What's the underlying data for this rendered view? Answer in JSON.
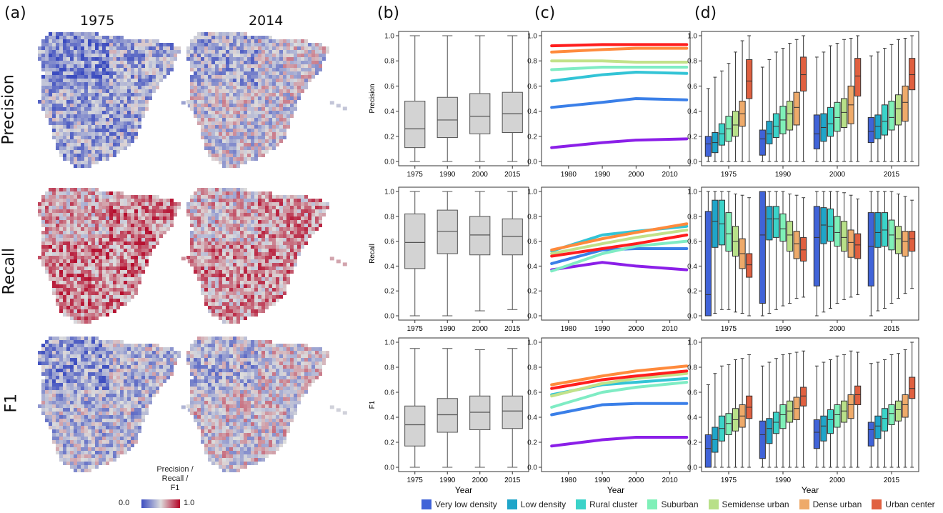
{
  "panel_labels": {
    "a": "(a)",
    "b": "(b)",
    "c": "(c)",
    "d": "(d)"
  },
  "maps": {
    "years": [
      "1975",
      "2014"
    ],
    "rows": [
      "Precision",
      "Recall",
      "F1"
    ],
    "colorbar": {
      "label": "Precision /\nRecall /\nF1",
      "min": "0.0",
      "max": "1.0",
      "low_color": "#3b4cc0",
      "mid_color": "#dddddd",
      "high_color": "#b40426"
    }
  },
  "categories": [
    "Very low density",
    "Low density",
    "Rural cluster",
    "Suburban",
    "Semidense urban",
    "Dense urban",
    "Urban center"
  ],
  "colors": {
    "box_gray": "#d3d3d3",
    "cat_box": [
      "#4063d8",
      "#1fa5c9",
      "#3bd3c9",
      "#7ff0b8",
      "#b8e089",
      "#eeaa6a",
      "#e06040"
    ],
    "line": [
      "#8b1fe8",
      "#3a7fe8",
      "#33c4d6",
      "#7fecc4",
      "#c2e28a",
      "#ff8a3c",
      "#ff1e1e"
    ]
  },
  "chart_data": [
    {
      "type": "box",
      "panel": "b",
      "metric": "Precision",
      "categories": [
        "1975",
        "1990",
        "2000",
        "2015"
      ],
      "ylabel": "Precision",
      "xlabel": "",
      "ylim": [
        0,
        1
      ],
      "yticks": [
        "0.0",
        "0.2",
        "0.4",
        "0.6",
        "0.8",
        "1.0"
      ],
      "boxes": [
        {
          "min": 0.0,
          "q1": 0.11,
          "median": 0.26,
          "q3": 0.48,
          "max": 1.0
        },
        {
          "min": 0.0,
          "q1": 0.19,
          "median": 0.33,
          "q3": 0.51,
          "max": 1.0
        },
        {
          "min": 0.0,
          "q1": 0.22,
          "median": 0.36,
          "q3": 0.54,
          "max": 1.0
        },
        {
          "min": 0.0,
          "q1": 0.23,
          "median": 0.38,
          "q3": 0.55,
          "max": 1.0
        }
      ]
    },
    {
      "type": "box",
      "panel": "b",
      "metric": "Recall",
      "categories": [
        "1975",
        "1990",
        "2000",
        "2015"
      ],
      "ylabel": "Recall",
      "xlabel": "",
      "ylim": [
        0,
        1
      ],
      "yticks": [
        "0.0",
        "0.2",
        "0.4",
        "0.6",
        "0.8",
        "1.0"
      ],
      "boxes": [
        {
          "min": 0.0,
          "q1": 0.38,
          "median": 0.59,
          "q3": 0.82,
          "max": 1.0
        },
        {
          "min": 0.0,
          "q1": 0.5,
          "median": 0.68,
          "q3": 0.85,
          "max": 1.0
        },
        {
          "min": 0.04,
          "q1": 0.49,
          "median": 0.65,
          "q3": 0.8,
          "max": 1.0
        },
        {
          "min": 0.05,
          "q1": 0.49,
          "median": 0.64,
          "q3": 0.78,
          "max": 1.0
        }
      ]
    },
    {
      "type": "box",
      "panel": "b",
      "metric": "F1",
      "categories": [
        "1975",
        "1990",
        "2000",
        "2015"
      ],
      "ylabel": "F1",
      "xlabel": "Year",
      "ylim": [
        0,
        1
      ],
      "yticks": [
        "0.0",
        "0.2",
        "0.4",
        "0.6",
        "0.8",
        "1.0"
      ],
      "boxes": [
        {
          "min": 0.0,
          "q1": 0.17,
          "median": 0.34,
          "q3": 0.49,
          "max": 0.95
        },
        {
          "min": 0.0,
          "q1": 0.28,
          "median": 0.42,
          "q3": 0.55,
          "max": 0.95
        },
        {
          "min": 0.0,
          "q1": 0.3,
          "median": 0.44,
          "q3": 0.57,
          "max": 0.94
        },
        {
          "min": 0.0,
          "q1": 0.31,
          "median": 0.45,
          "q3": 0.57,
          "max": 0.95
        }
      ]
    },
    {
      "type": "line",
      "panel": "c",
      "metric": "Precision",
      "x": [
        1975,
        1990,
        2000,
        2015
      ],
      "xlim": [
        1972,
        2016
      ],
      "ylim": [
        0,
        1
      ],
      "xticks": [
        "1980",
        "1990",
        "2000",
        "2010"
      ],
      "yticks": [
        "0.0",
        "0.2",
        "0.4",
        "0.6",
        "0.8",
        "1.0"
      ],
      "xlabel": "",
      "series": [
        {
          "name": "Very low density",
          "values": [
            0.11,
            0.15,
            0.17,
            0.18
          ]
        },
        {
          "name": "Low density",
          "values": [
            0.43,
            0.47,
            0.5,
            0.49
          ]
        },
        {
          "name": "Rural cluster",
          "values": [
            0.64,
            0.69,
            0.71,
            0.7
          ]
        },
        {
          "name": "Suburban",
          "values": [
            0.73,
            0.75,
            0.75,
            0.75
          ]
        },
        {
          "name": "Semidense urban",
          "values": [
            0.8,
            0.8,
            0.79,
            0.79
          ]
        },
        {
          "name": "Dense urban",
          "values": [
            0.87,
            0.89,
            0.9,
            0.9
          ]
        },
        {
          "name": "Urban center",
          "values": [
            0.92,
            0.93,
            0.93,
            0.93
          ]
        }
      ]
    },
    {
      "type": "line",
      "panel": "c",
      "metric": "Recall",
      "x": [
        1975,
        1990,
        2000,
        2015
      ],
      "xlim": [
        1972,
        2016
      ],
      "ylim": [
        0,
        1
      ],
      "xticks": [
        "1980",
        "1990",
        "2000",
        "2010"
      ],
      "yticks": [
        "0.0",
        "0.2",
        "0.4",
        "0.6",
        "0.8",
        "1.0"
      ],
      "xlabel": "",
      "series": [
        {
          "name": "Very low density",
          "values": [
            0.37,
            0.43,
            0.4,
            0.37
          ]
        },
        {
          "name": "Low density",
          "values": [
            0.42,
            0.53,
            0.54,
            0.54
          ]
        },
        {
          "name": "Rural cluster",
          "values": [
            0.52,
            0.65,
            0.68,
            0.72
          ]
        },
        {
          "name": "Suburban",
          "values": [
            0.36,
            0.5,
            0.56,
            0.6
          ]
        },
        {
          "name": "Semidense urban",
          "values": [
            0.5,
            0.58,
            0.63,
            0.69
          ]
        },
        {
          "name": "Dense urban",
          "values": [
            0.53,
            0.62,
            0.67,
            0.74
          ]
        },
        {
          "name": "Urban center",
          "values": [
            0.48,
            0.54,
            0.58,
            0.65
          ]
        }
      ]
    },
    {
      "type": "line",
      "panel": "c",
      "metric": "F1",
      "x": [
        1975,
        1990,
        2000,
        2015
      ],
      "xlim": [
        1972,
        2016
      ],
      "ylim": [
        0,
        1
      ],
      "xticks": [
        "1980",
        "1990",
        "2000",
        "2010"
      ],
      "yticks": [
        "0.0",
        "0.2",
        "0.4",
        "0.6",
        "0.8",
        "1.0"
      ],
      "xlabel": "Year",
      "series": [
        {
          "name": "Very low density",
          "values": [
            0.17,
            0.22,
            0.24,
            0.24
          ]
        },
        {
          "name": "Low density",
          "values": [
            0.42,
            0.5,
            0.51,
            0.51
          ]
        },
        {
          "name": "Rural cluster",
          "values": [
            0.58,
            0.66,
            0.68,
            0.71
          ]
        },
        {
          "name": "Suburban",
          "values": [
            0.48,
            0.6,
            0.64,
            0.68
          ]
        },
        {
          "name": "Semidense urban",
          "values": [
            0.57,
            0.67,
            0.71,
            0.75
          ]
        },
        {
          "name": "Dense urban",
          "values": [
            0.66,
            0.73,
            0.77,
            0.81
          ]
        },
        {
          "name": "Urban center",
          "values": [
            0.63,
            0.7,
            0.73,
            0.77
          ]
        }
      ]
    },
    {
      "type": "box",
      "panel": "d",
      "metric": "Precision",
      "groups": [
        "1975",
        "1990",
        "2000",
        "2015"
      ],
      "ylim": [
        0,
        1
      ],
      "xlabel": "",
      "yticks": [
        "0.0",
        "0.2",
        "0.4",
        "0.6",
        "0.8",
        "1.0"
      ],
      "boxes": [
        [
          [
            0,
            0.04,
            0.14,
            0.2,
            0.58
          ],
          [
            0,
            0.07,
            0.15,
            0.23,
            0.67
          ],
          [
            0,
            0.13,
            0.22,
            0.3,
            0.72
          ],
          [
            0,
            0.16,
            0.26,
            0.36,
            0.78
          ],
          [
            0,
            0.2,
            0.29,
            0.4,
            0.87
          ],
          [
            0,
            0.28,
            0.38,
            0.48,
            0.96
          ],
          [
            0,
            0.5,
            0.64,
            0.81,
            1.0
          ]
        ],
        [
          [
            0,
            0.05,
            0.18,
            0.25,
            0.75
          ],
          [
            0,
            0.14,
            0.22,
            0.32,
            0.81
          ],
          [
            0,
            0.19,
            0.28,
            0.38,
            0.87
          ],
          [
            0,
            0.22,
            0.33,
            0.44,
            0.9
          ],
          [
            0,
            0.25,
            0.38,
            0.48,
            0.94
          ],
          [
            0,
            0.29,
            0.43,
            0.55,
            0.97
          ],
          [
            0,
            0.56,
            0.69,
            0.83,
            1.0
          ]
        ],
        [
          [
            0,
            0.1,
            0.22,
            0.37,
            0.83
          ],
          [
            0,
            0.16,
            0.27,
            0.38,
            0.87
          ],
          [
            0,
            0.2,
            0.3,
            0.43,
            0.92
          ],
          [
            0,
            0.24,
            0.35,
            0.47,
            0.94
          ],
          [
            0,
            0.27,
            0.39,
            0.5,
            0.97
          ],
          [
            0,
            0.3,
            0.45,
            0.6,
            0.98
          ],
          [
            0,
            0.52,
            0.68,
            0.82,
            1.0
          ]
        ],
        [
          [
            0,
            0.15,
            0.24,
            0.35,
            0.84
          ],
          [
            0,
            0.18,
            0.28,
            0.37,
            0.87
          ],
          [
            0,
            0.21,
            0.32,
            0.45,
            0.9
          ],
          [
            0,
            0.25,
            0.35,
            0.48,
            0.93
          ],
          [
            0,
            0.29,
            0.42,
            0.53,
            0.97
          ],
          [
            0,
            0.32,
            0.47,
            0.6,
            0.98
          ],
          [
            0,
            0.57,
            0.69,
            0.82,
            1.0
          ]
        ]
      ]
    },
    {
      "type": "box",
      "panel": "d",
      "metric": "Recall",
      "groups": [
        "1975",
        "1990",
        "2000",
        "2015"
      ],
      "ylim": [
        0,
        1
      ],
      "xlabel": "",
      "yticks": [
        "0.0",
        "0.2",
        "0.4",
        "0.6",
        "0.8",
        "1.0"
      ],
      "boxes": [
        [
          [
            0,
            0.0,
            0.17,
            0.84,
            1.0
          ],
          [
            0.02,
            0.55,
            0.76,
            0.93,
            1.0
          ],
          [
            0.05,
            0.57,
            0.74,
            0.93,
            1.0
          ],
          [
            0.05,
            0.52,
            0.66,
            0.83,
            1.0
          ],
          [
            0.03,
            0.48,
            0.6,
            0.72,
            0.98
          ],
          [
            0.02,
            0.38,
            0.5,
            0.62,
            0.97
          ],
          [
            0,
            0.31,
            0.41,
            0.5,
            0.95
          ]
        ],
        [
          [
            0,
            0.1,
            0.65,
            1.0,
            1.0
          ],
          [
            0.02,
            0.61,
            0.78,
            0.88,
            1.0
          ],
          [
            0.05,
            0.63,
            0.78,
            0.88,
            1.0
          ],
          [
            0.08,
            0.6,
            0.7,
            0.82,
            1.0
          ],
          [
            0.1,
            0.52,
            0.65,
            0.76,
            0.98
          ],
          [
            0.14,
            0.46,
            0.58,
            0.68,
            0.97
          ],
          [
            0.15,
            0.44,
            0.53,
            0.63,
            0.95
          ]
        ],
        [
          [
            0,
            0.24,
            0.63,
            0.88,
            1.0
          ],
          [
            0.03,
            0.58,
            0.73,
            0.87,
            1.0
          ],
          [
            0.06,
            0.6,
            0.72,
            0.86,
            1.0
          ],
          [
            0.1,
            0.56,
            0.67,
            0.8,
            1.0
          ],
          [
            0.13,
            0.52,
            0.63,
            0.76,
            0.99
          ],
          [
            0.15,
            0.47,
            0.59,
            0.69,
            0.97
          ],
          [
            0.17,
            0.46,
            0.57,
            0.66,
            0.94
          ]
        ],
        [
          [
            0,
            0.24,
            0.56,
            0.83,
            1.0
          ],
          [
            0.04,
            0.55,
            0.67,
            0.83,
            1.0
          ],
          [
            0.06,
            0.56,
            0.69,
            0.83,
            1.0
          ],
          [
            0.1,
            0.53,
            0.65,
            0.77,
            1.0
          ],
          [
            0.14,
            0.5,
            0.62,
            0.72,
            0.98
          ],
          [
            0.18,
            0.48,
            0.6,
            0.68,
            0.96
          ],
          [
            0.22,
            0.52,
            0.62,
            0.68,
            0.93
          ]
        ]
      ]
    },
    {
      "type": "box",
      "panel": "d",
      "metric": "F1",
      "groups": [
        "1975",
        "1990",
        "2000",
        "2015"
      ],
      "ylim": [
        0,
        1
      ],
      "xlabel": "Year",
      "yticks": [
        "0.0",
        "0.2",
        "0.4",
        "0.6",
        "0.8",
        "1.0"
      ],
      "boxes": [
        [
          [
            0,
            0.0,
            0.15,
            0.26,
            0.66
          ],
          [
            0,
            0.12,
            0.22,
            0.32,
            0.75
          ],
          [
            0,
            0.21,
            0.31,
            0.41,
            0.81
          ],
          [
            0,
            0.26,
            0.35,
            0.43,
            0.82
          ],
          [
            0,
            0.29,
            0.38,
            0.47,
            0.86
          ],
          [
            0,
            0.32,
            0.41,
            0.5,
            0.87
          ],
          [
            0,
            0.39,
            0.48,
            0.57,
            0.9
          ]
        ],
        [
          [
            0,
            0.07,
            0.26,
            0.37,
            0.81
          ],
          [
            0,
            0.19,
            0.31,
            0.39,
            0.84
          ],
          [
            0,
            0.27,
            0.36,
            0.44,
            0.87
          ],
          [
            0,
            0.31,
            0.42,
            0.5,
            0.9
          ],
          [
            0,
            0.36,
            0.45,
            0.53,
            0.91
          ],
          [
            0,
            0.38,
            0.47,
            0.56,
            0.92
          ],
          [
            0,
            0.49,
            0.57,
            0.64,
            0.93
          ]
        ],
        [
          [
            0,
            0.15,
            0.28,
            0.38,
            0.81
          ],
          [
            0,
            0.21,
            0.33,
            0.41,
            0.84
          ],
          [
            0,
            0.27,
            0.38,
            0.46,
            0.86
          ],
          [
            0,
            0.32,
            0.42,
            0.5,
            0.89
          ],
          [
            0,
            0.36,
            0.45,
            0.53,
            0.9
          ],
          [
            0,
            0.39,
            0.5,
            0.58,
            0.93
          ],
          [
            0,
            0.5,
            0.58,
            0.65,
            0.92
          ]
        ],
        [
          [
            0,
            0.17,
            0.3,
            0.36,
            0.83
          ],
          [
            0,
            0.23,
            0.33,
            0.41,
            0.84
          ],
          [
            0,
            0.29,
            0.39,
            0.47,
            0.86
          ],
          [
            0,
            0.34,
            0.43,
            0.5,
            0.9
          ],
          [
            0,
            0.37,
            0.46,
            0.53,
            0.91
          ],
          [
            0,
            0.4,
            0.5,
            0.58,
            0.94
          ],
          [
            0,
            0.55,
            0.63,
            0.72,
            1.0
          ]
        ]
      ]
    }
  ]
}
